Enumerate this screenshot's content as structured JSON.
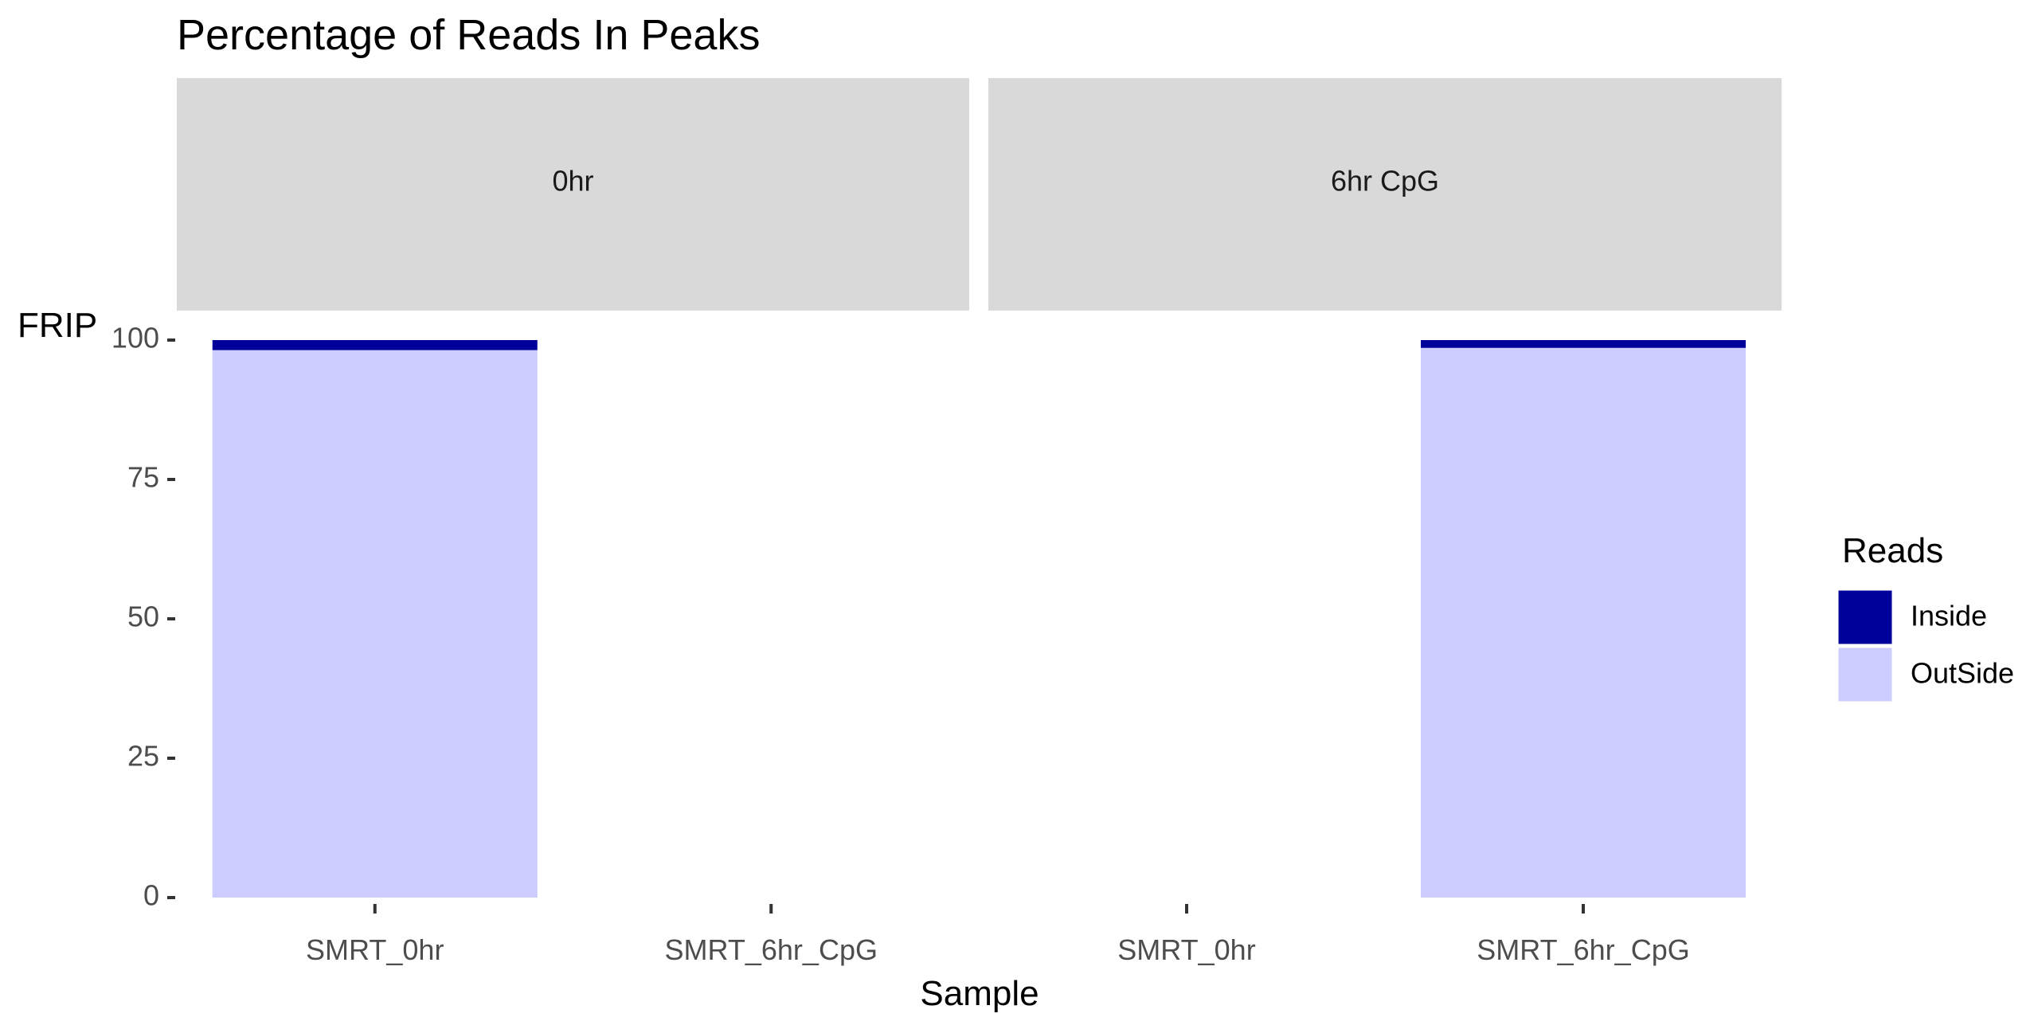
{
  "chart_data": {
    "type": "bar",
    "stacked": true,
    "title": "Percentage of Reads In Peaks",
    "xlabel": "Sample",
    "ylabel": "FRIP",
    "ylim": [
      0,
      100
    ],
    "yticks": [
      "0",
      "25",
      "50",
      "75",
      "100"
    ],
    "categories": [
      "SMRT_0hr",
      "SMRT_6hr_CpG"
    ],
    "facets": [
      {
        "label": "0hr",
        "series": [
          {
            "name": "Inside",
            "values": [
              1.8,
              null
            ]
          },
          {
            "name": "OutSide",
            "values": [
              98.2,
              null
            ]
          }
        ]
      },
      {
        "label": "6hr CpG",
        "series": [
          {
            "name": "Inside",
            "values": [
              null,
              1.4
            ]
          },
          {
            "name": "OutSide",
            "values": [
              null,
              98.6
            ]
          }
        ]
      }
    ],
    "legend": {
      "title": "Reads",
      "placement": "right",
      "entries": [
        {
          "name": "Inside",
          "color": "#00009a"
        },
        {
          "name": "OutSide",
          "color": "#ccccff"
        }
      ]
    },
    "colors": {
      "Inside": "#00009a",
      "OutSide": "#ccccff",
      "strip": "#d9d9d9"
    }
  }
}
